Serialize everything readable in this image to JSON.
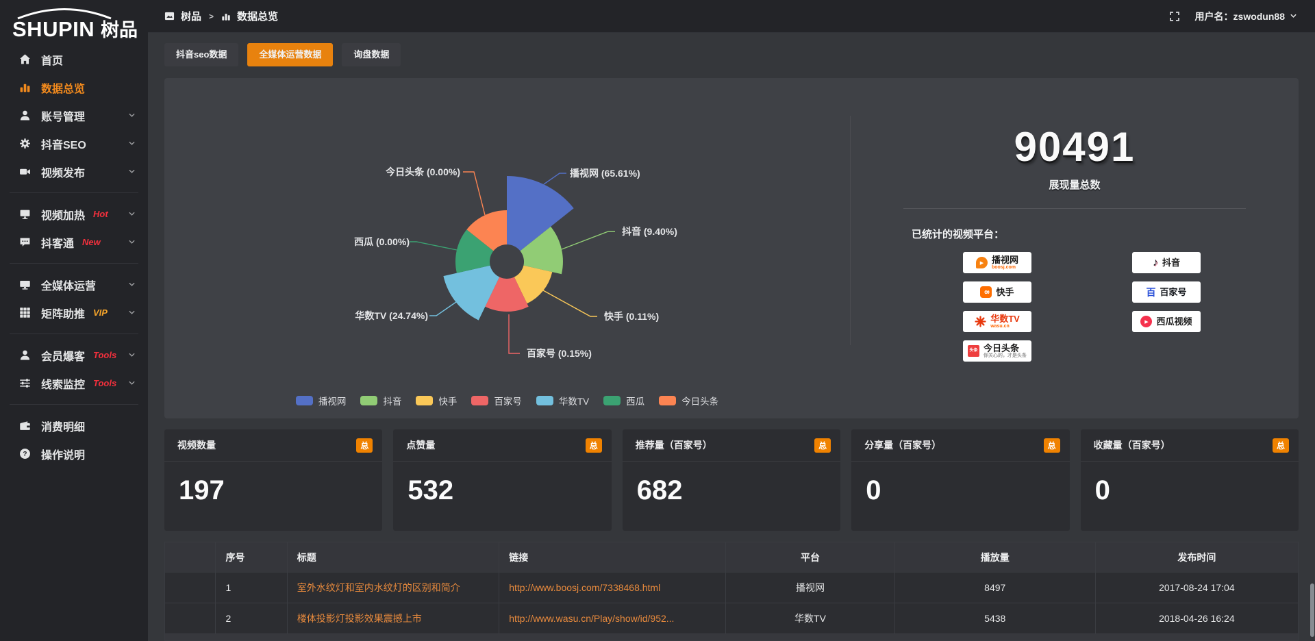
{
  "colors": {
    "accent_orange": "#e8820e",
    "badge_orange": "#f08200",
    "sidebar_active": "#f28a1d",
    "link_orange": "#e88a3d",
    "hot_red": "#f5303d",
    "vip_orange": "#f7a52a"
  },
  "sidebar": {
    "logo_en": "SHUPIN",
    "logo_cn": "树品",
    "items": [
      {
        "label": "首页",
        "icon": "home",
        "active": false,
        "expandable": false,
        "divider_after": false
      },
      {
        "label": "数据总览",
        "icon": "bar-chart",
        "active": true,
        "expandable": false,
        "divider_after": false
      },
      {
        "label": "账号管理",
        "icon": "user",
        "active": false,
        "expandable": true,
        "divider_after": false
      },
      {
        "label": "抖音SEO",
        "icon": "gear",
        "active": false,
        "expandable": true,
        "divider_after": false
      },
      {
        "label": "视频发布",
        "icon": "video",
        "active": false,
        "expandable": true,
        "divider_after": true
      },
      {
        "label": "视频加热",
        "icon": "screen",
        "badge": "Hot",
        "badge_color": "#f5303d",
        "active": false,
        "expandable": true,
        "divider_after": false
      },
      {
        "label": "抖客通",
        "icon": "chat",
        "badge": "New",
        "badge_color": "#f5303d",
        "active": false,
        "expandable": true,
        "divider_after": true
      },
      {
        "label": "全媒体运营",
        "icon": "monitor",
        "active": false,
        "expandable": true,
        "divider_after": false
      },
      {
        "label": "矩阵助推",
        "icon": "grid",
        "badge": "VIP",
        "badge_color": "#f7a52a",
        "active": false,
        "expandable": true,
        "divider_after": true
      },
      {
        "label": "会员爆客",
        "icon": "member",
        "badge": "Tools",
        "badge_color": "#f5303d",
        "active": false,
        "expandable": true,
        "divider_after": false
      },
      {
        "label": "线索监控",
        "icon": "sliders",
        "badge": "Tools",
        "badge_color": "#f5303d",
        "active": false,
        "expandable": true,
        "divider_after": true
      },
      {
        "label": "消费明细",
        "icon": "wallet",
        "active": false,
        "expandable": false,
        "divider_after": false
      },
      {
        "label": "操作说明",
        "icon": "question",
        "active": false,
        "expandable": false,
        "divider_after": false
      }
    ]
  },
  "topbar": {
    "app_label": "树品",
    "separator": ">",
    "page_label": "数据总览",
    "username_label": "用户名：zswodun88"
  },
  "tabs": [
    {
      "label": "抖音seo数据",
      "active": false
    },
    {
      "label": "全媒体运营数据",
      "active": true
    },
    {
      "label": "询盘数据",
      "active": false
    }
  ],
  "chart_data": {
    "type": "pie",
    "variant": "nightingale-rose-donut",
    "legend_position": "bottom",
    "series": [
      {
        "name": "播视网",
        "pct": "65.61",
        "color": "#5470c6"
      },
      {
        "name": "抖音",
        "pct": "9.40",
        "color": "#91cc75"
      },
      {
        "name": "快手",
        "pct": "0.11",
        "color": "#fac858"
      },
      {
        "name": "百家号",
        "pct": "0.15",
        "color": "#ee6666"
      },
      {
        "name": "华数TV",
        "pct": "24.74",
        "color": "#73c0de"
      },
      {
        "name": "西瓜",
        "pct": "0.00",
        "color": "#3ba272"
      },
      {
        "name": "今日头条",
        "pct": "0.00",
        "color": "#fc8452"
      }
    ],
    "legend": [
      "播视网",
      "抖音",
      "快手",
      "百家号",
      "华数TV",
      "西瓜",
      "今日头条"
    ]
  },
  "summary": {
    "total_value": "90491",
    "total_label": "展现量总数",
    "platforms_label": "已统计的视频平台：",
    "platforms_left": [
      {
        "name": "播视网",
        "sub": "boosj.com",
        "icon": "boosj"
      },
      {
        "name": "快手",
        "icon": "kuaishou"
      },
      {
        "name": "华数TV",
        "sub": "wasu.cn",
        "icon": "wasu",
        "name_color": "#e8380d"
      },
      {
        "name": "今日头条",
        "sub": "你关心的，才是头条",
        "icon": "toutiao",
        "sub_color": "#9a9a9a"
      }
    ],
    "platforms_right": [
      {
        "name": "抖音",
        "icon": "douyin"
      },
      {
        "name": "百家号",
        "icon": "baijiahao",
        "name_color": "#15181d"
      },
      {
        "name": "西瓜视频",
        "icon": "xigua"
      }
    ]
  },
  "stat_cards": [
    {
      "title": "视频数量",
      "badge": "总",
      "value": "197"
    },
    {
      "title": "点赞量",
      "badge": "总",
      "value": "532"
    },
    {
      "title": "推荐量（百家号）",
      "badge": "总",
      "value": "682"
    },
    {
      "title": "分享量（百家号）",
      "badge": "总",
      "value": "0"
    },
    {
      "title": "收藏量（百家号）",
      "badge": "总",
      "value": "0"
    }
  ],
  "table": {
    "columns": [
      "序号",
      "标题",
      "链接",
      "平台",
      "播放量",
      "发布时间"
    ],
    "rows": [
      {
        "index": "1",
        "title": "室外水纹灯和室内水纹灯的区别和简介",
        "link": "http://www.boosj.com/7338468.html",
        "platform": "播视网",
        "plays": "8497",
        "time": "2017-08-24 17:04"
      },
      {
        "index": "2",
        "title": "楼体投影灯投影效果震撼上市",
        "link": "http://www.wasu.cn/Play/show/id/952...",
        "platform": "华数TV",
        "plays": "5438",
        "time": "2018-04-26 16:24"
      }
    ]
  }
}
